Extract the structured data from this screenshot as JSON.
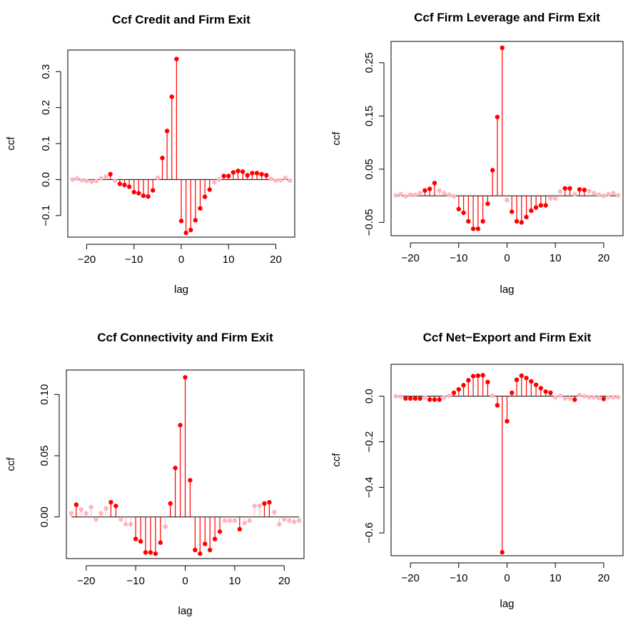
{
  "colors": {
    "significant": "#ff0000",
    "insignificant": "#ffb6c1",
    "baseline": "#000000",
    "frame": "#000000"
  },
  "chart_data": [
    {
      "type": "ccf-stem",
      "title": "Ccf  Credit and Firm Exit",
      "xlabel": "lag",
      "ylabel": "ccf",
      "xlim": [
        -24,
        24
      ],
      "ylim": [
        -0.16,
        0.36
      ],
      "x_ticks": [
        -20,
        -10,
        0,
        10,
        20
      ],
      "x_tick_labels": [
        "−20",
        "−10",
        "0",
        "10",
        "20"
      ],
      "y_ticks": [
        -0.1,
        0.0,
        0.1,
        0.2,
        0.3
      ],
      "y_tick_labels": [
        "−0.1",
        "0.0",
        "0.1",
        "0.2",
        "0.3"
      ],
      "lags": [
        -23,
        -22,
        -21,
        -20,
        -19,
        -18,
        -17,
        -16,
        -15,
        -14,
        -13,
        -12,
        -11,
        -10,
        -9,
        -8,
        -7,
        -6,
        -5,
        -4,
        -3,
        -2,
        -1,
        0,
        1,
        2,
        3,
        4,
        5,
        6,
        7,
        8,
        9,
        10,
        11,
        12,
        13,
        14,
        15,
        16,
        17,
        18,
        19,
        20,
        21,
        22,
        23
      ],
      "values": [
        0.0,
        0.003,
        -0.002,
        -0.004,
        -0.006,
        -0.004,
        0.003,
        0.008,
        0.015,
        -0.003,
        -0.012,
        -0.015,
        -0.02,
        -0.035,
        -0.038,
        -0.045,
        -0.047,
        -0.03,
        0.005,
        0.06,
        0.135,
        0.23,
        0.335,
        -0.115,
        -0.148,
        -0.14,
        -0.113,
        -0.08,
        -0.048,
        -0.028,
        -0.008,
        0.0,
        0.01,
        0.01,
        0.02,
        0.024,
        0.022,
        0.012,
        0.018,
        0.018,
        0.015,
        0.012,
        0.002,
        -0.003,
        -0.002,
        0.005,
        -0.003
      ],
      "significant": [
        false,
        false,
        false,
        false,
        false,
        false,
        false,
        false,
        true,
        false,
        true,
        true,
        true,
        true,
        true,
        true,
        true,
        true,
        false,
        true,
        true,
        true,
        true,
        true,
        true,
        true,
        true,
        true,
        true,
        true,
        false,
        false,
        true,
        true,
        true,
        true,
        true,
        true,
        true,
        true,
        true,
        true,
        false,
        false,
        false,
        false,
        false
      ]
    },
    {
      "type": "ccf-stem",
      "title": "Ccf  Firm Leverage and Firm Exit",
      "xlabel": "lag",
      "ylabel": "ccf",
      "xlim": [
        -24,
        24
      ],
      "ylim": [
        -0.075,
        0.29
      ],
      "x_ticks": [
        -20,
        -10,
        0,
        10,
        20
      ],
      "x_tick_labels": [
        "−20",
        "−10",
        "0",
        "10",
        "20"
      ],
      "y_ticks": [
        -0.05,
        0.05,
        0.15,
        0.25
      ],
      "y_tick_labels": [
        "−0.05",
        "0.05",
        "0.15",
        "0.25"
      ],
      "lags": [
        -23,
        -22,
        -21,
        -20,
        -19,
        -18,
        -17,
        -16,
        -15,
        -14,
        -13,
        -12,
        -11,
        -10,
        -9,
        -8,
        -7,
        -6,
        -5,
        -4,
        -3,
        -2,
        -1,
        0,
        1,
        2,
        3,
        4,
        5,
        6,
        7,
        8,
        9,
        10,
        11,
        12,
        13,
        14,
        15,
        16,
        17,
        18,
        19,
        20,
        21,
        22,
        23
      ],
      "values": [
        0.001,
        0.003,
        -0.001,
        0.002,
        0.002,
        0.005,
        0.01,
        0.013,
        0.024,
        0.01,
        0.005,
        0.002,
        -0.001,
        -0.025,
        -0.032,
        -0.048,
        -0.062,
        -0.062,
        -0.048,
        -0.015,
        0.048,
        0.148,
        0.278,
        -0.008,
        -0.03,
        -0.048,
        -0.05,
        -0.04,
        -0.028,
        -0.022,
        -0.018,
        -0.018,
        -0.005,
        -0.005,
        0.008,
        0.014,
        0.014,
        0.003,
        0.012,
        0.011,
        0.009,
        0.005,
        0.002,
        0.0,
        0.003,
        0.005,
        0.001
      ],
      "significant": [
        false,
        false,
        false,
        false,
        false,
        false,
        true,
        true,
        true,
        false,
        false,
        false,
        false,
        true,
        true,
        true,
        true,
        true,
        true,
        true,
        true,
        true,
        true,
        false,
        true,
        true,
        true,
        true,
        true,
        true,
        true,
        true,
        false,
        false,
        false,
        true,
        true,
        false,
        true,
        true,
        false,
        false,
        false,
        false,
        false,
        false,
        false
      ]
    },
    {
      "type": "ccf-stem",
      "title": "Ccf  Connectivity and Firm Exit",
      "xlabel": "lag",
      "ylabel": "ccf",
      "xlim": [
        -24,
        24
      ],
      "ylim": [
        -0.034,
        0.12
      ],
      "x_ticks": [
        -20,
        -10,
        0,
        10,
        20
      ],
      "x_tick_labels": [
        "−20",
        "−10",
        "0",
        "10",
        "20"
      ],
      "y_ticks": [
        0.0,
        0.05,
        0.1
      ],
      "y_tick_labels": [
        "0.00",
        "0.05",
        "0.10"
      ],
      "lags": [
        -23,
        -22,
        -21,
        -20,
        -19,
        -18,
        -17,
        -16,
        -15,
        -14,
        -13,
        -12,
        -11,
        -10,
        -9,
        -8,
        -7,
        -6,
        -5,
        -4,
        -3,
        -2,
        -1,
        0,
        1,
        2,
        3,
        4,
        5,
        6,
        7,
        8,
        9,
        10,
        11,
        12,
        13,
        14,
        15,
        16,
        17,
        18,
        19,
        20,
        21,
        22,
        23
      ],
      "values": [
        0.003,
        0.01,
        0.006,
        0.003,
        0.008,
        -0.002,
        0.003,
        0.007,
        0.012,
        0.009,
        -0.002,
        -0.006,
        -0.006,
        -0.018,
        -0.02,
        -0.029,
        -0.029,
        -0.03,
        -0.021,
        -0.008,
        0.011,
        0.04,
        0.075,
        0.114,
        0.03,
        -0.027,
        -0.03,
        -0.022,
        -0.027,
        -0.018,
        -0.012,
        -0.003,
        -0.003,
        -0.003,
        -0.01,
        -0.005,
        -0.003,
        0.009,
        0.009,
        0.011,
        0.012,
        0.004,
        -0.006,
        -0.002,
        -0.003,
        -0.004,
        -0.003
      ],
      "significant": [
        false,
        true,
        false,
        false,
        false,
        false,
        false,
        false,
        true,
        true,
        false,
        false,
        false,
        true,
        true,
        true,
        true,
        true,
        true,
        false,
        true,
        true,
        true,
        true,
        true,
        true,
        true,
        true,
        true,
        true,
        true,
        false,
        false,
        false,
        true,
        false,
        false,
        false,
        false,
        true,
        true,
        false,
        false,
        false,
        false,
        false,
        false
      ]
    },
    {
      "type": "ccf-stem",
      "title": "Ccf  Net−Export and Firm Exit",
      "xlabel": "lag",
      "ylabel": "ccf",
      "xlim": [
        -24,
        24
      ],
      "ylim": [
        -0.7,
        0.14
      ],
      "x_ticks": [
        -20,
        -10,
        0,
        10,
        20
      ],
      "x_tick_labels": [
        "−20",
        "−10",
        "0",
        "10",
        "20"
      ],
      "y_ticks": [
        -0.6,
        -0.4,
        -0.2,
        0.0
      ],
      "y_tick_labels": [
        "−0.6",
        "−0.4",
        "−0.2",
        "0.0"
      ],
      "lags": [
        -23,
        -22,
        -21,
        -20,
        -19,
        -18,
        -17,
        -16,
        -15,
        -14,
        -13,
        -12,
        -11,
        -10,
        -9,
        -8,
        -7,
        -6,
        -5,
        -4,
        -3,
        -2,
        -1,
        0,
        1,
        2,
        3,
        4,
        5,
        6,
        7,
        8,
        9,
        10,
        11,
        12,
        13,
        14,
        15,
        16,
        17,
        18,
        19,
        20,
        21,
        22,
        23
      ],
      "values": [
        0.0,
        -0.002,
        -0.01,
        -0.01,
        -0.01,
        -0.01,
        -0.005,
        -0.015,
        -0.015,
        -0.015,
        -0.005,
        0.002,
        0.015,
        0.03,
        0.048,
        0.07,
        0.088,
        0.09,
        0.092,
        0.062,
        0.002,
        -0.04,
        -0.685,
        -0.11,
        0.015,
        0.072,
        0.09,
        0.08,
        0.065,
        0.05,
        0.035,
        0.02,
        0.015,
        -0.005,
        0.002,
        -0.01,
        -0.01,
        -0.015,
        0.005,
        0.0,
        -0.005,
        -0.005,
        -0.008,
        -0.012,
        -0.005,
        -0.005,
        -0.005
      ],
      "significant": [
        false,
        false,
        true,
        true,
        true,
        true,
        false,
        true,
        true,
        true,
        false,
        false,
        true,
        true,
        true,
        true,
        true,
        true,
        true,
        true,
        false,
        true,
        true,
        true,
        true,
        true,
        true,
        true,
        true,
        true,
        true,
        true,
        true,
        false,
        false,
        false,
        false,
        true,
        false,
        false,
        false,
        false,
        false,
        true,
        false,
        false,
        false
      ]
    }
  ]
}
